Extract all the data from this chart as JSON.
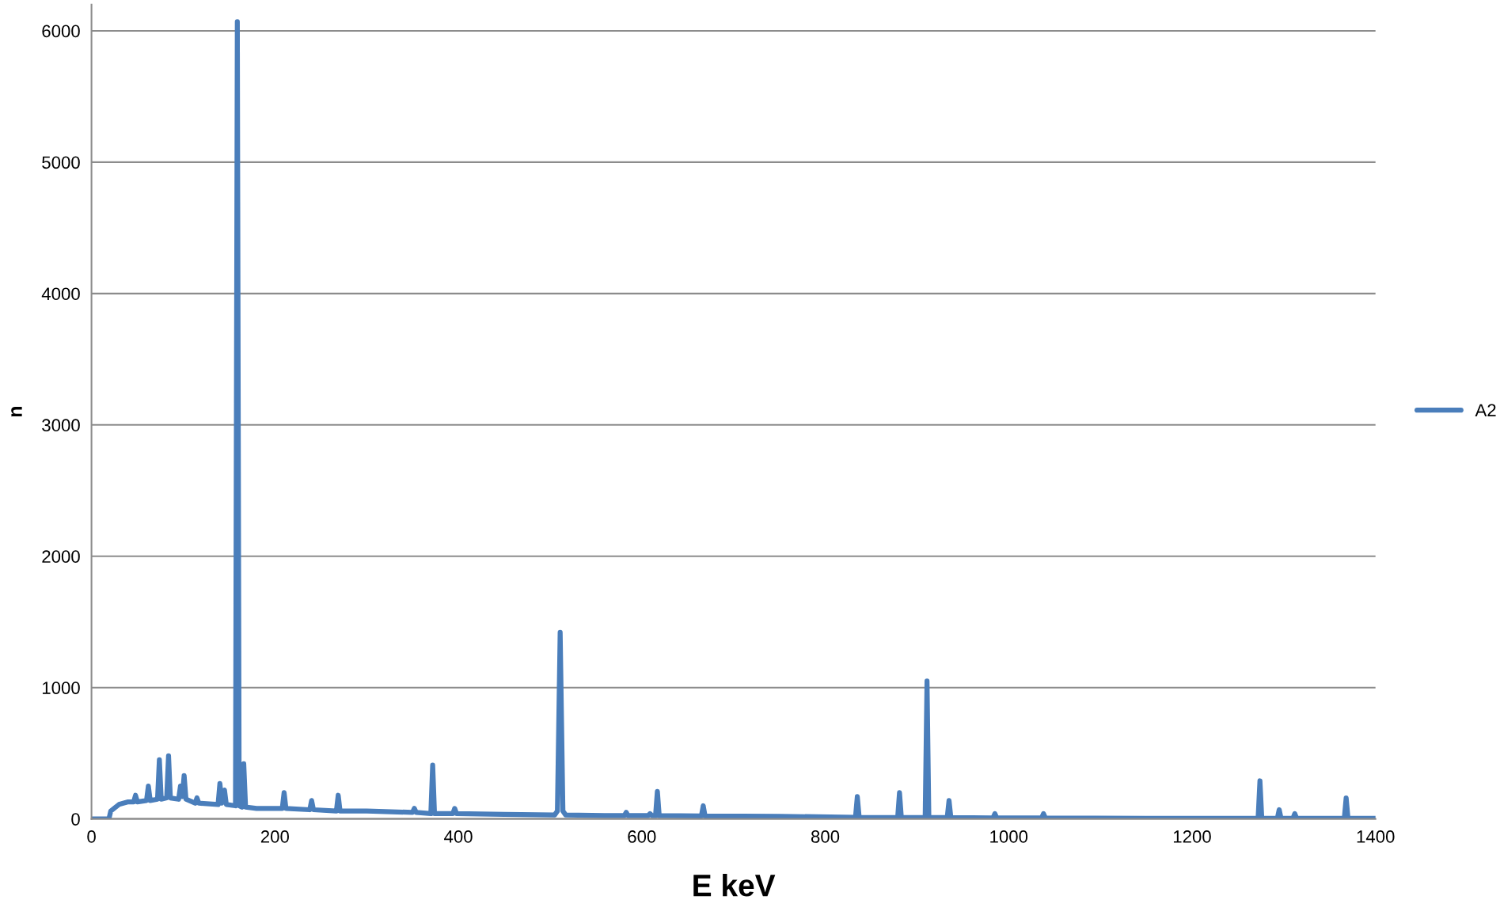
{
  "chart_data": {
    "type": "line",
    "xlabel": "E keV",
    "ylabel": "n",
    "xlim": [
      0,
      1400
    ],
    "xticks": [
      0,
      200,
      400,
      600,
      800,
      1000,
      1200,
      1400
    ],
    "ylim": [
      0,
      6200
    ],
    "yticks": [
      0,
      1000,
      2000,
      3000,
      4000,
      5000,
      6000
    ],
    "grid": "y",
    "legend": "right",
    "marker": "none",
    "line_style": "solid",
    "series": [
      {
        "name": "A2",
        "color": "#4a7ebb",
        "x": [
          0,
          19,
          21,
          30,
          40,
          46,
          48,
          50,
          60,
          62,
          64,
          72,
          74,
          76,
          82,
          84,
          86,
          95,
          97,
          99,
          101,
          103,
          113,
          115,
          117,
          138,
          140,
          142,
          145,
          147,
          157,
          159,
          161,
          164,
          166,
          168,
          180,
          208,
          210,
          212,
          238,
          240,
          242,
          267,
          269,
          271,
          300,
          350,
          352,
          354,
          370,
          372,
          374,
          394,
          396,
          398,
          450,
          505,
          508,
          511,
          514,
          517,
          560,
          581,
          583,
          585,
          607,
          609,
          611,
          615,
          617,
          619,
          665,
          667,
          669,
          750,
          833,
          835,
          837,
          879,
          881,
          883,
          909,
          911,
          913,
          933,
          935,
          937,
          983,
          985,
          987,
          1036,
          1038,
          1040,
          1150,
          1272,
          1274,
          1276,
          1293,
          1295,
          1297,
          1310,
          1312,
          1314,
          1366,
          1368,
          1370,
          1400
        ],
        "values": [
          0,
          0,
          60,
          110,
          130,
          130,
          180,
          130,
          140,
          250,
          140,
          150,
          450,
          150,
          160,
          480,
          160,
          150,
          250,
          170,
          330,
          150,
          120,
          160,
          120,
          110,
          270,
          120,
          220,
          110,
          100,
          6070,
          100,
          90,
          420,
          90,
          80,
          80,
          200,
          80,
          70,
          140,
          70,
          60,
          180,
          60,
          60,
          50,
          80,
          50,
          40,
          410,
          40,
          40,
          80,
          40,
          35,
          30,
          60,
          1420,
          60,
          30,
          25,
          25,
          50,
          25,
          25,
          40,
          25,
          25,
          210,
          25,
          22,
          100,
          22,
          20,
          12,
          170,
          12,
          10,
          200,
          10,
          10,
          1050,
          10,
          10,
          140,
          10,
          8,
          40,
          8,
          8,
          40,
          8,
          5,
          5,
          290,
          5,
          5,
          70,
          5,
          5,
          40,
          5,
          5,
          160,
          5,
          5
        ]
      }
    ]
  }
}
